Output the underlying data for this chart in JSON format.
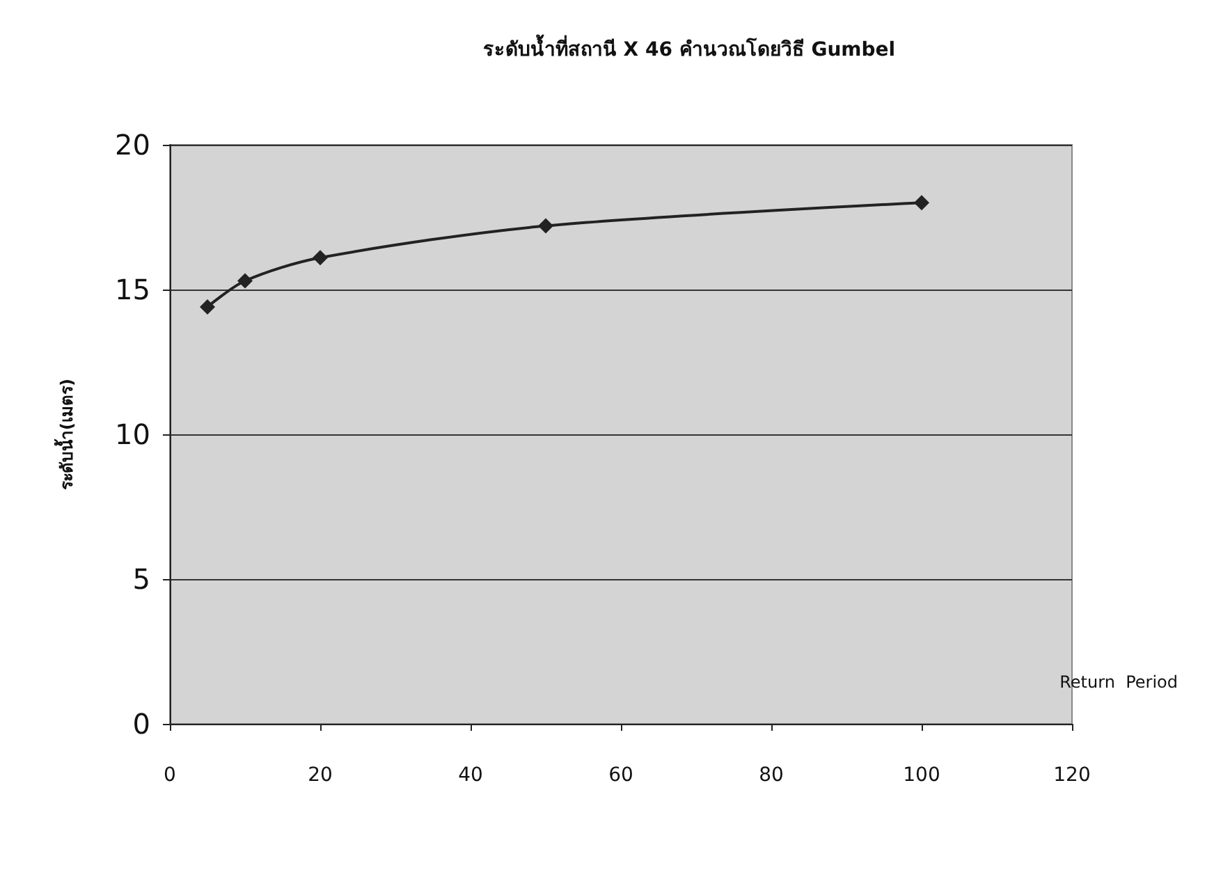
{
  "chart_data": {
    "type": "line",
    "title": "ระดับน้ำที่สถานี X 46 คำนวณโดยวิธี Gumbel",
    "xlabel": "Return  Period",
    "ylabel": "ระดับน้ำ(เมตร)",
    "x": [
      5,
      10,
      20,
      50,
      100
    ],
    "series": [
      {
        "color": "#222222",
        "values": [
          14.4,
          15.3,
          16.1,
          17.2,
          18.0
        ]
      }
    ],
    "xlim": [
      0,
      120
    ],
    "xticks": [
      0,
      20,
      40,
      60,
      80,
      100,
      120
    ],
    "ylim": [
      0,
      20
    ],
    "yticks": [
      0,
      5,
      10,
      15,
      20
    ],
    "grid": "y",
    "marker": "diamond",
    "line_style": "solid"
  }
}
